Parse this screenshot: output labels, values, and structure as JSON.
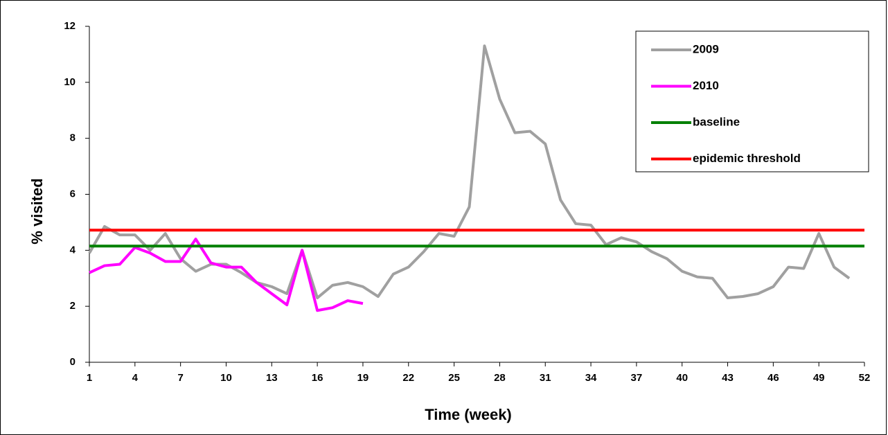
{
  "chart_data": {
    "type": "line",
    "x_label": "Time (week)",
    "y_label": "% visited",
    "xlim": [
      1,
      52
    ],
    "xticks": [
      1,
      4,
      7,
      10,
      13,
      16,
      19,
      22,
      25,
      28,
      31,
      34,
      37,
      40,
      43,
      46,
      49,
      52
    ],
    "ylim": [
      0,
      12
    ],
    "yticks": [
      0,
      2,
      4,
      6,
      8,
      10,
      12
    ],
    "legend": "upper right",
    "series": [
      {
        "name": "2009",
        "color": "#a0a0a0",
        "x": [
          1,
          2,
          3,
          4,
          5,
          6,
          7,
          8,
          9,
          10,
          11,
          12,
          13,
          14,
          15,
          16,
          17,
          18,
          19,
          20,
          21,
          22,
          23,
          24,
          25,
          26,
          27,
          28,
          29,
          30,
          31,
          32,
          33,
          34,
          35,
          36,
          37,
          38,
          39,
          40,
          41,
          42,
          43,
          44,
          45,
          46,
          47,
          48,
          49,
          50,
          51
        ],
        "values": [
          3.9,
          4.85,
          4.55,
          4.55,
          4.0,
          4.6,
          3.7,
          3.25,
          3.5,
          3.5,
          3.2,
          2.85,
          2.7,
          2.45,
          4.0,
          2.3,
          2.75,
          2.85,
          2.7,
          2.35,
          3.15,
          3.4,
          3.95,
          4.6,
          4.5,
          5.55,
          11.3,
          9.4,
          8.2,
          8.25,
          7.8,
          5.8,
          4.95,
          4.9,
          4.2,
          4.45,
          4.3,
          3.95,
          3.7,
          3.25,
          3.05,
          3.0,
          2.3,
          2.35,
          2.45,
          2.7,
          3.4,
          3.35,
          4.6,
          3.4,
          3.0
        ]
      },
      {
        "name": "2010",
        "color": "#ff00ff",
        "x": [
          1,
          2,
          3,
          4,
          5,
          6,
          7,
          8,
          9,
          10,
          11,
          12,
          13,
          14,
          15,
          16,
          17,
          18,
          19
        ],
        "values": [
          3.2,
          3.45,
          3.5,
          4.1,
          3.9,
          3.6,
          3.6,
          4.4,
          3.55,
          3.4,
          3.4,
          2.85,
          2.45,
          2.05,
          4.0,
          1.85,
          1.95,
          2.2,
          2.1
        ]
      },
      {
        "name": "baseline",
        "color": "#008000",
        "x": [
          1,
          52
        ],
        "values": [
          4.15,
          4.15
        ]
      },
      {
        "name": "epidemic threshold",
        "color": "#ff0000",
        "x": [
          1,
          52
        ],
        "values": [
          4.72,
          4.72
        ]
      }
    ]
  }
}
